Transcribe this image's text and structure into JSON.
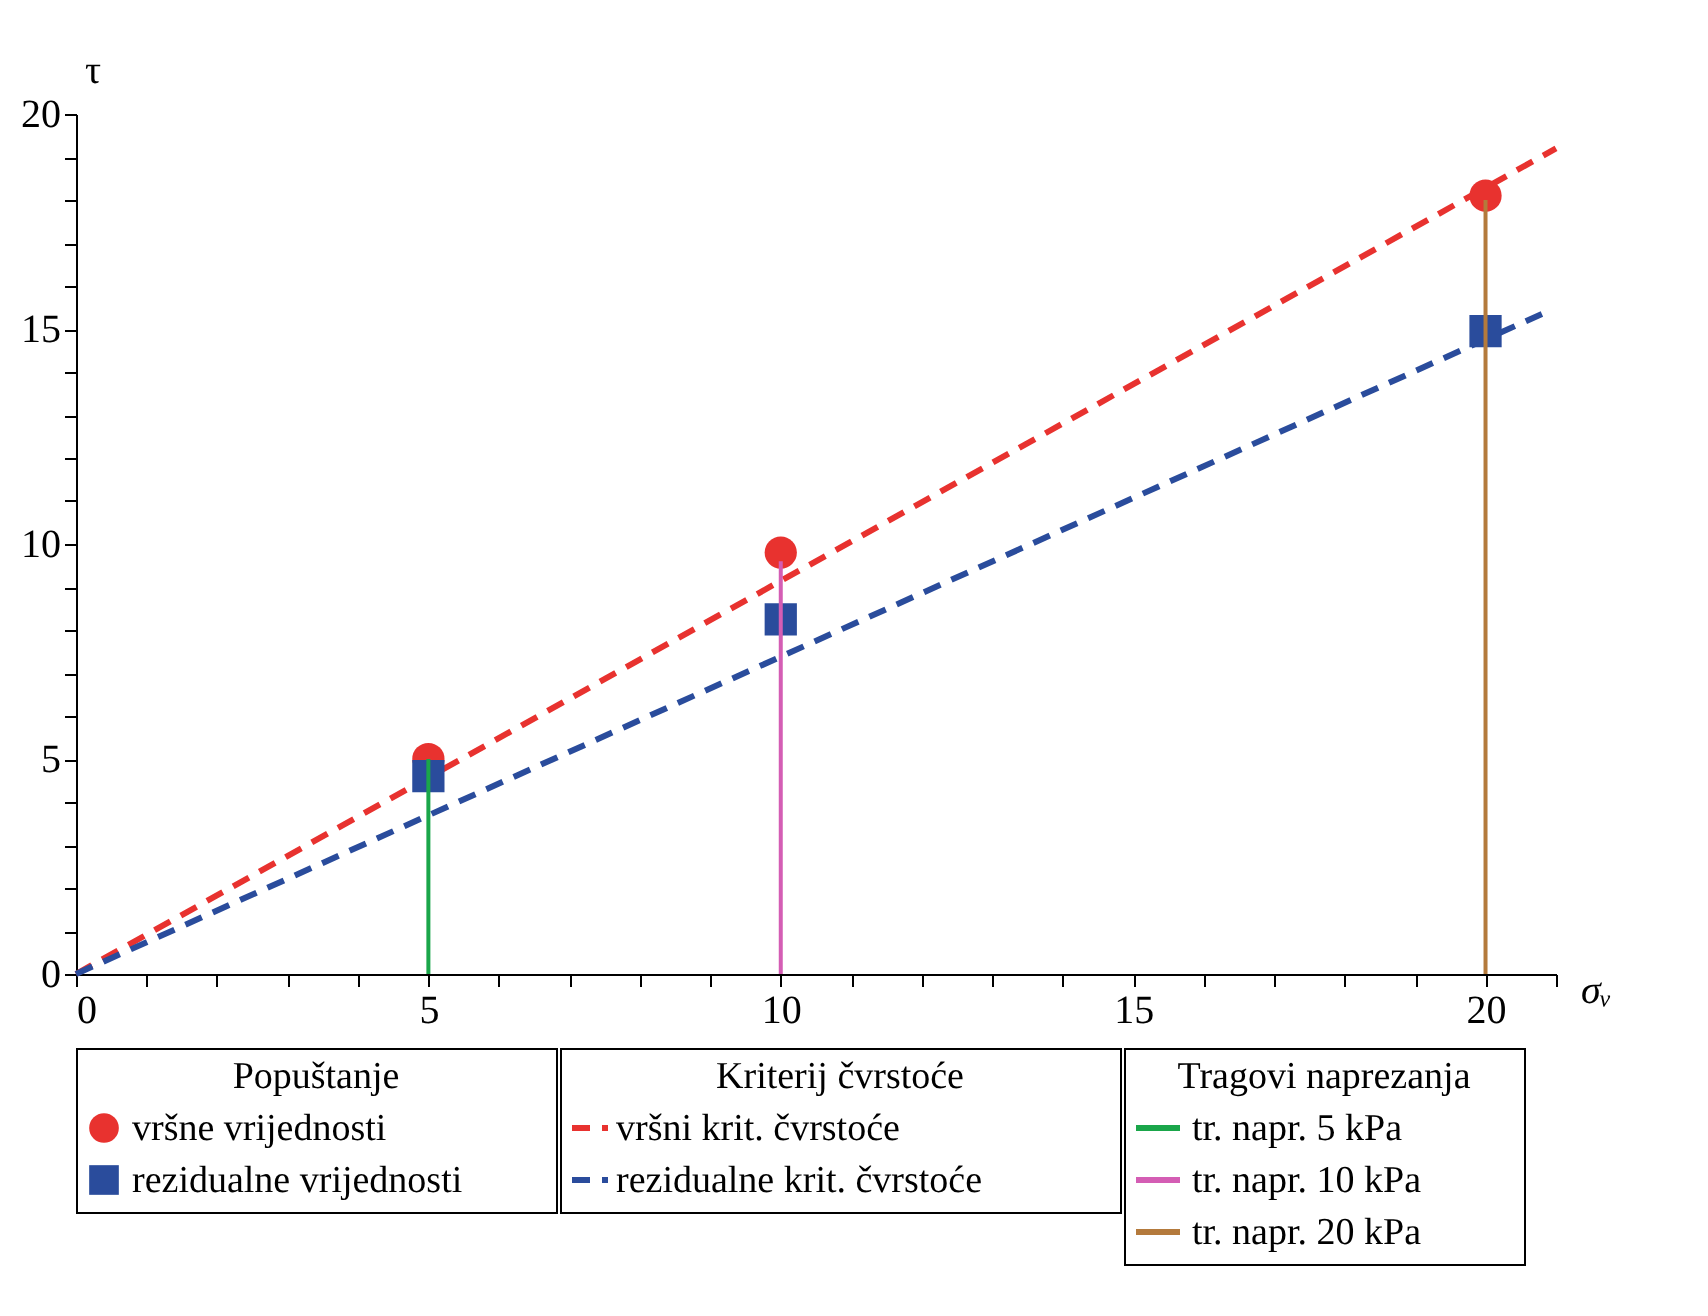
{
  "chart_data": {
    "type": "scatter",
    "xlabel": "σᵥ",
    "ylabel": "τ",
    "xlim": [
      0,
      21
    ],
    "ylim": [
      0,
      20
    ],
    "xticks": [
      0,
      {
        "value": 1,
        "label": null
      },
      {
        "value": 2,
        "label": null
      },
      {
        "value": 3,
        "label": null
      },
      {
        "value": 4,
        "label": null
      },
      5,
      {
        "value": 6,
        "label": null
      },
      {
        "value": 7,
        "label": null
      },
      {
        "value": 8,
        "label": null
      },
      {
        "value": 9,
        "label": null
      },
      10,
      {
        "value": 11,
        "label": null
      },
      {
        "value": 12,
        "label": null
      },
      {
        "value": 13,
        "label": null
      },
      {
        "value": 14,
        "label": null
      },
      15,
      {
        "value": 16,
        "label": null
      },
      {
        "value": 17,
        "label": null
      },
      {
        "value": 18,
        "label": null
      },
      {
        "value": 19,
        "label": null
      },
      20,
      {
        "value": 21,
        "label": null
      }
    ],
    "yticks": [
      0,
      {
        "value": 1,
        "label": null
      },
      {
        "value": 2,
        "label": null
      },
      {
        "value": 3,
        "label": null
      },
      {
        "value": 4,
        "label": null
      },
      5,
      {
        "value": 6,
        "label": null
      },
      {
        "value": 7,
        "label": null
      },
      {
        "value": 8,
        "label": null
      },
      {
        "value": 9,
        "label": null
      },
      10,
      {
        "value": 11,
        "label": null
      },
      {
        "value": 12,
        "label": null
      },
      {
        "value": 13,
        "label": null
      },
      {
        "value": 14,
        "label": null
      },
      15,
      {
        "value": 16,
        "label": null
      },
      {
        "value": 17,
        "label": null
      },
      {
        "value": 18,
        "label": null
      },
      {
        "value": 19,
        "label": null
      },
      20
    ],
    "grid": false,
    "legend": "bottom",
    "annotations": [
      "Popuštanje",
      "Kriterij čvrstoće",
      "Tragovi naprezanja"
    ],
    "series": [
      {
        "name": "vršne vrijednosti",
        "type": "scatter",
        "marker": "circle",
        "color": "#e8322f",
        "x": [
          5,
          10,
          20
        ],
        "values": [
          5.0,
          9.8,
          18.1
        ]
      },
      {
        "name": "rezidualne vrijednosti",
        "type": "scatter",
        "marker": "square",
        "color": "#2a4c9c",
        "x": [
          5,
          10,
          20
        ],
        "values": [
          4.6,
          8.25,
          14.95
        ]
      },
      {
        "name": "vršni krit. čvrstoće",
        "type": "line",
        "line_style": "dashed",
        "color": "#e8322f",
        "x": [
          0,
          21
        ],
        "values": [
          0,
          19.2
        ]
      },
      {
        "name": "rezidualne krit. čvrstoće",
        "type": "line",
        "line_style": "dashed",
        "color": "#2a4c9c",
        "x": [
          0,
          20.8
        ],
        "values": [
          0,
          15.35
        ]
      },
      {
        "name": "tr. napr. 5 kPa",
        "type": "line",
        "line_style": "solid",
        "color": "#1aa64a",
        "x": [
          5,
          5
        ],
        "values": [
          0,
          5.0
        ]
      },
      {
        "name": "tr. napr. 10 kPa",
        "type": "line",
        "line_style": "solid",
        "color": "#d45db4",
        "x": [
          10,
          10
        ],
        "values": [
          0,
          9.6
        ]
      },
      {
        "name": "tr. napr. 20 kPa",
        "type": "line",
        "line_style": "solid",
        "color": "#b47a3c",
        "x": [
          20,
          20
        ],
        "values": [
          0,
          18.0
        ]
      }
    ]
  }
}
